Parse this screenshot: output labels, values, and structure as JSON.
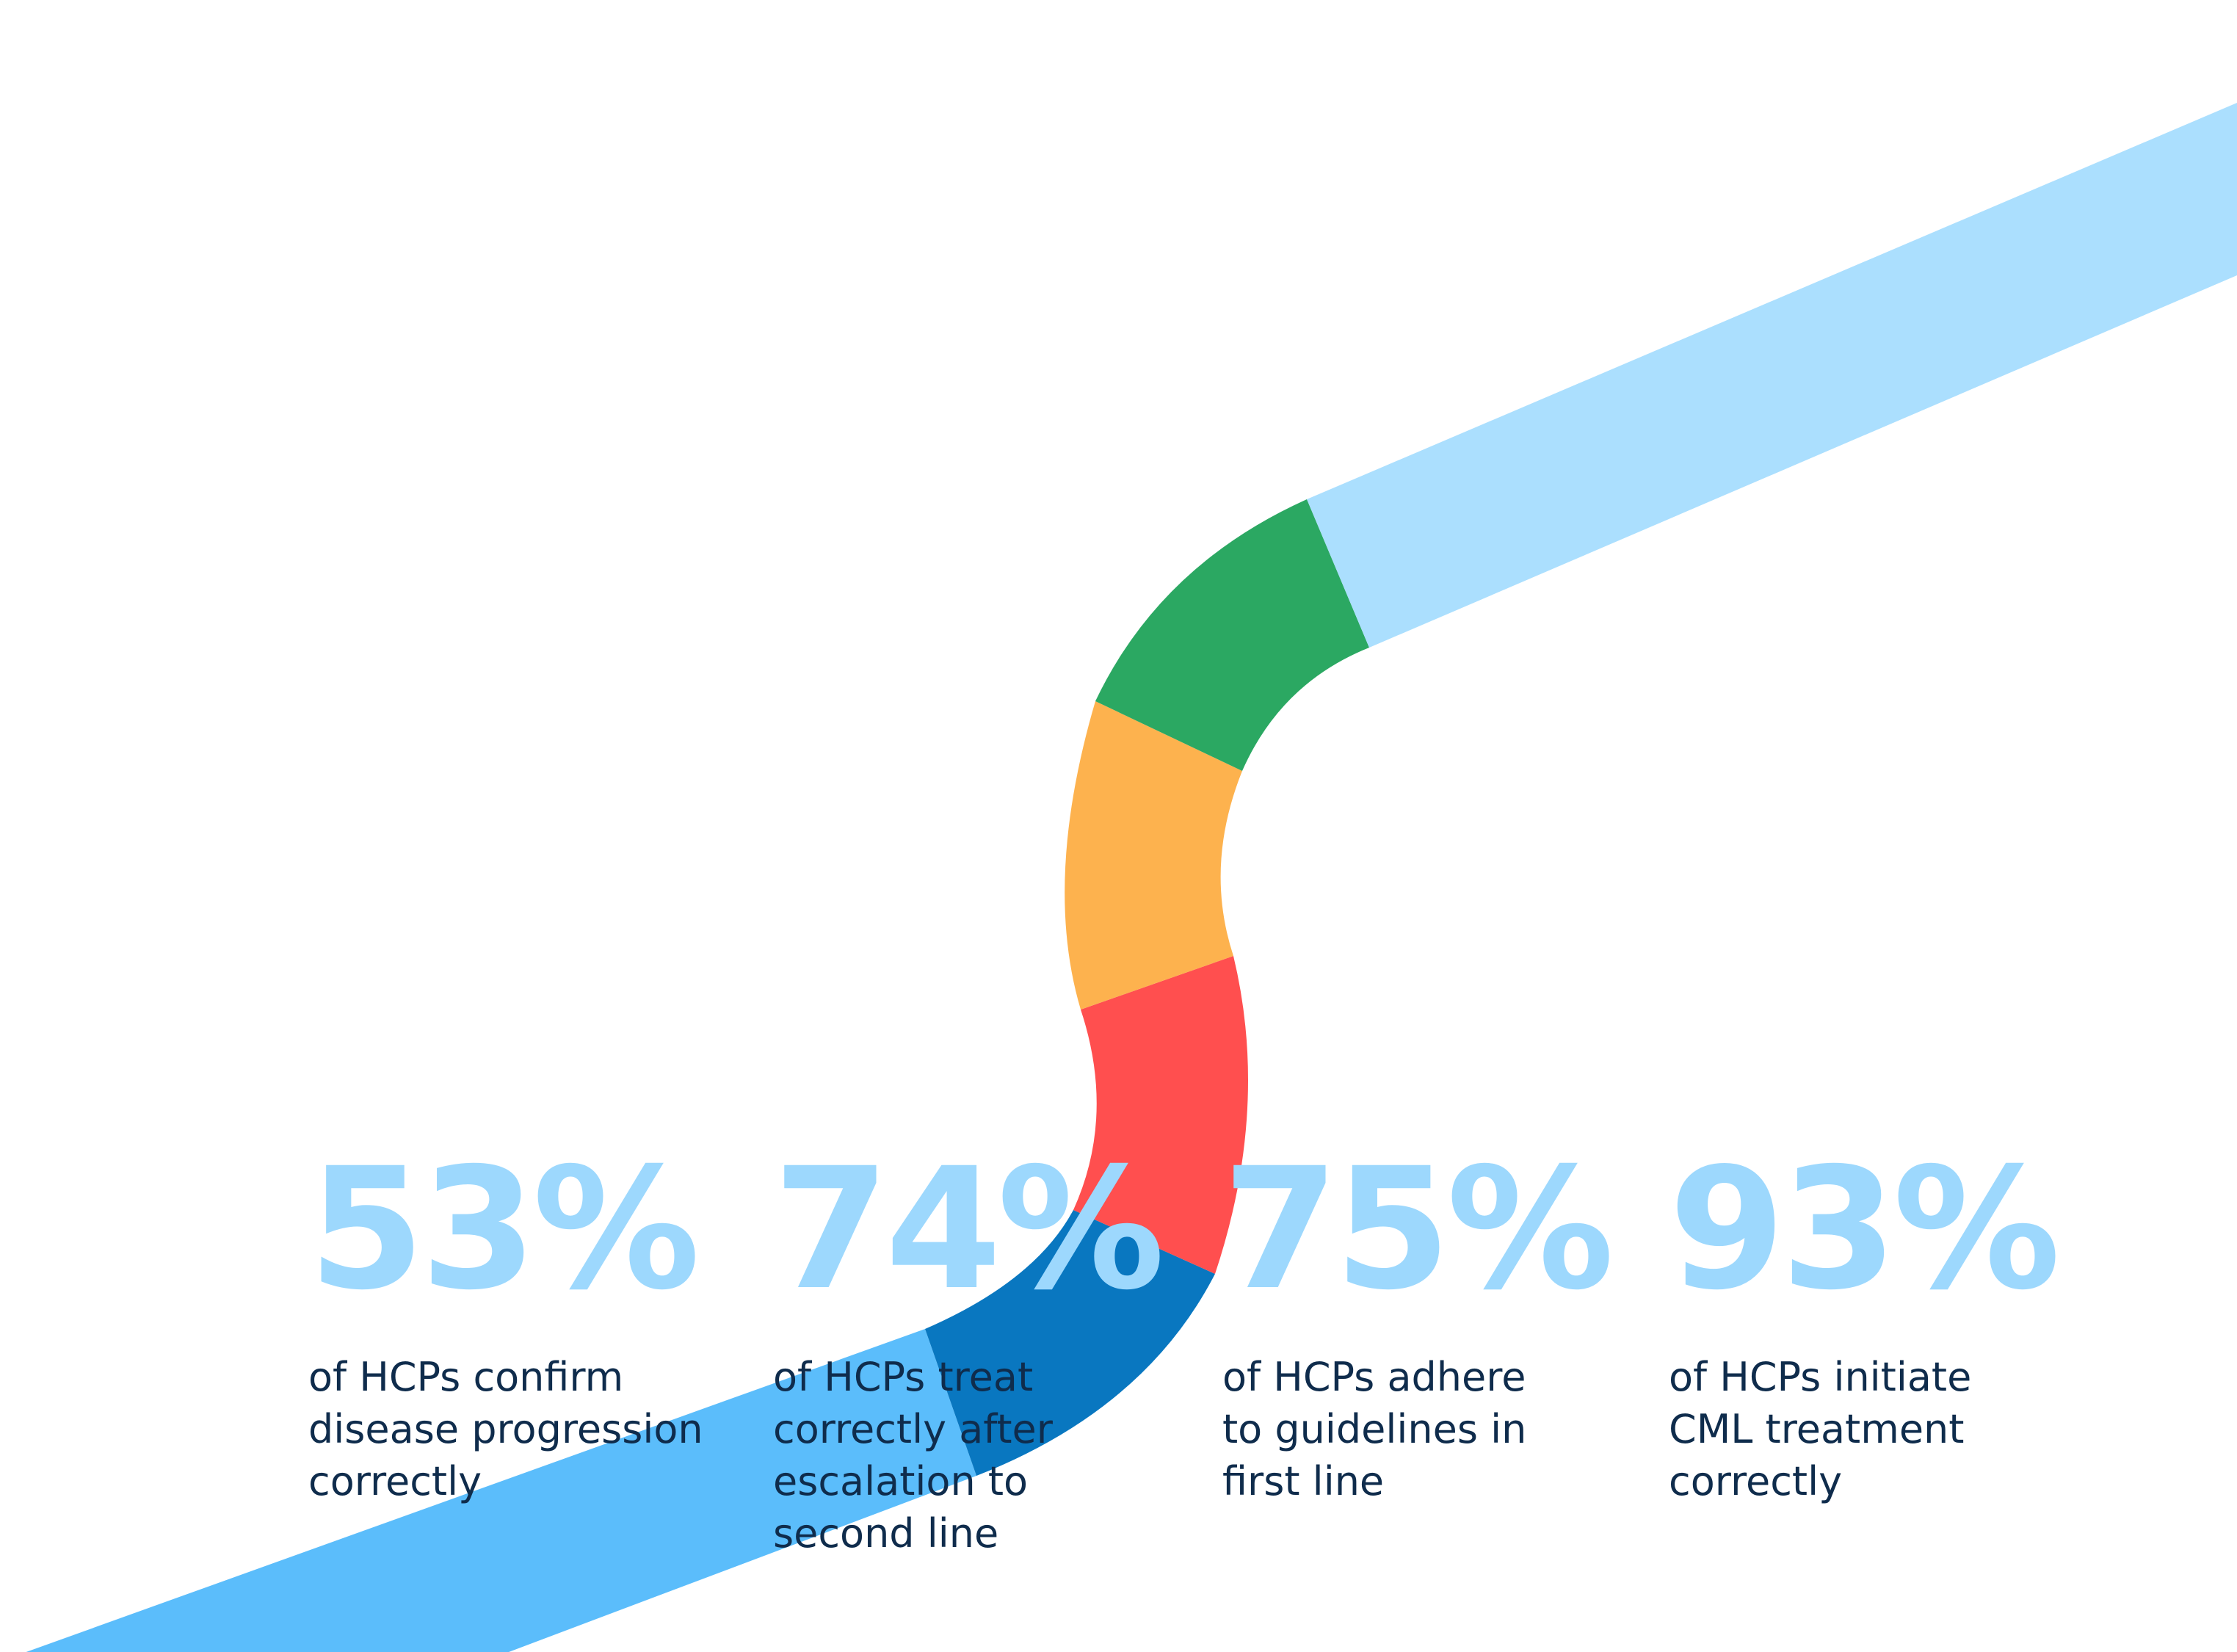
{
  "colors": {
    "lower_path": "#5bbdfb",
    "upper_path": "#abdffe",
    "green": "#2ba862",
    "orange": "#fdb24e",
    "red": "#ff4f4f",
    "blue": "#0977c0",
    "percent_text": "#9dd8fd",
    "desc_text": "#0f2c4c"
  },
  "stats": [
    {
      "value": "53%",
      "lines": [
        "of HCPs confirm",
        "disease progression",
        "correctly"
      ]
    },
    {
      "value": "74%",
      "lines": [
        "of HCPs treat",
        "correctly after",
        "escalation to",
        "second line"
      ]
    },
    {
      "value": "75%",
      "lines": [
        "of HCPs adhere",
        "to guidelines in",
        "first line"
      ]
    },
    {
      "value": "93%",
      "lines": [
        "of HCPs initiate",
        "CML treatment",
        "correctly"
      ]
    }
  ]
}
